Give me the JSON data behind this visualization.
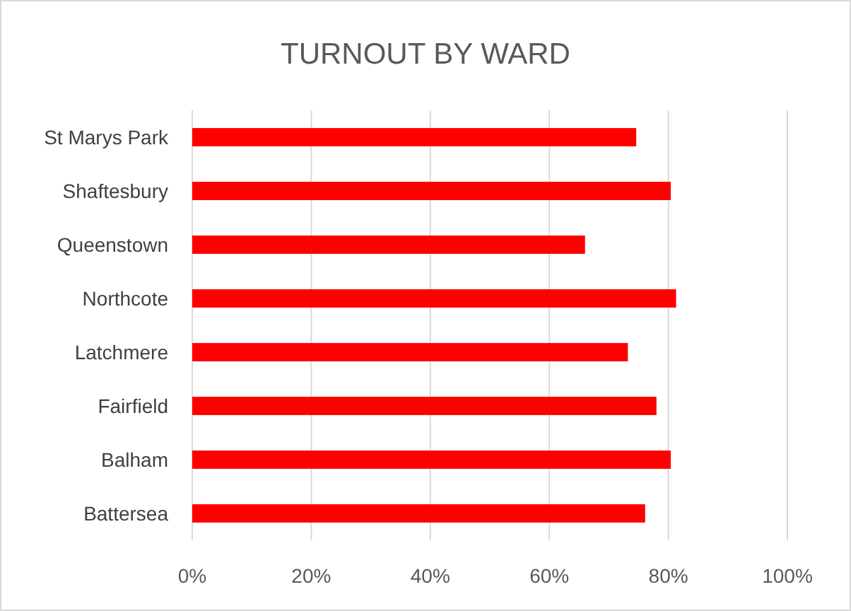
{
  "chart_data": {
    "type": "bar",
    "orientation": "horizontal",
    "title": "TURNOUT BY WARD",
    "categories": [
      "St Marys Park",
      "Shaftesbury",
      "Queenstown",
      "Northcote",
      "Latchmere",
      "Fairfield",
      "Balham",
      "Battersea"
    ],
    "values": [
      74.6,
      80.4,
      66.0,
      81.3,
      73.2,
      78.0,
      80.4,
      76.1
    ],
    "color": "#ff0000",
    "xlim": [
      0,
      100
    ],
    "xticks": [
      {
        "value": 0,
        "label": "0%"
      },
      {
        "value": 20,
        "label": "20%"
      },
      {
        "value": 40,
        "label": "40%"
      },
      {
        "value": 60,
        "label": "60%"
      },
      {
        "value": 80,
        "label": "80%"
      },
      {
        "value": 100,
        "label": "100%"
      }
    ],
    "grid": "x"
  }
}
